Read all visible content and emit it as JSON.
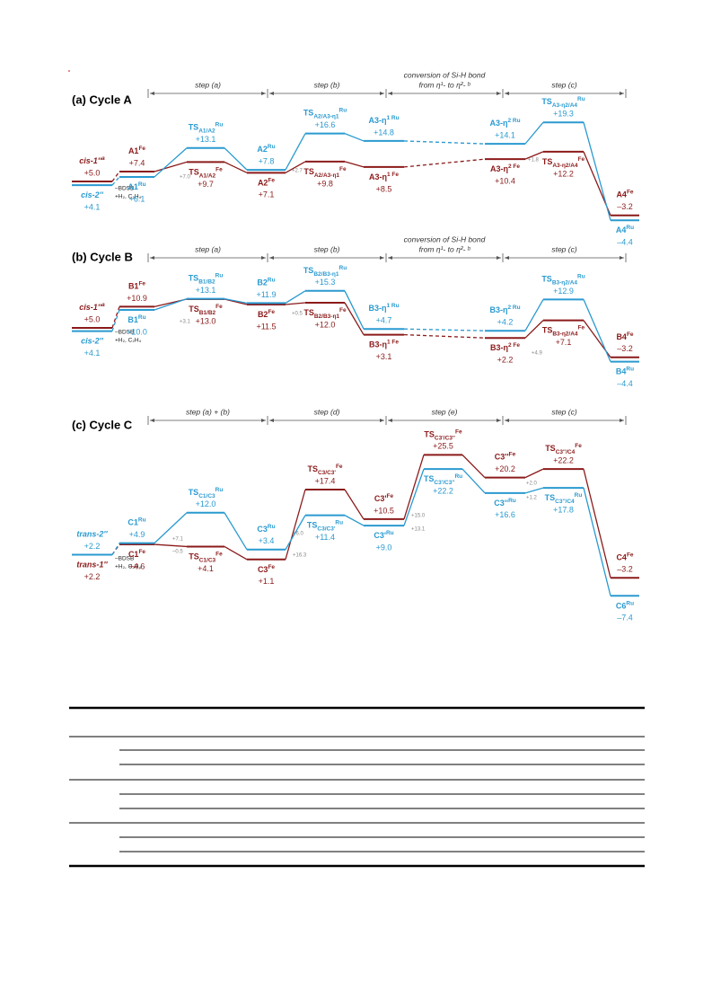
{
  "panels": [
    {
      "title": "(a) Cycle A",
      "steps": [
        [
          "step (a)"
        ],
        [
          "step (b)"
        ],
        [
          "conversion of Si-H bond",
          "from η¹- to η²- ᵇ"
        ],
        [
          "step (c)"
        ]
      ],
      "reagents": [
        "–BDSB",
        "+H₂, C₂H₄"
      ],
      "notes": [
        "+7.0",
        "+2.7",
        "+1.8"
      ],
      "levels": [
        {
          "fe": {
            "name": "cis-1''",
            "sup": "a",
            "energy": {
              "value": 5.0,
              "label": "+5.0"
            }
          },
          "ru": {
            "name": "cis-2''",
            "energy": {
              "value": 4.1,
              "label": "+4.1"
            }
          }
        },
        {
          "fe": {
            "name": "A1",
            "sup": "Fe",
            "energy": {
              "value": 7.4,
              "label": "+7.4"
            }
          },
          "ru": {
            "name": "A1",
            "sup": "Ru",
            "energy": {
              "value": 6.1,
              "label": "+6.1"
            }
          }
        },
        {
          "fe": {
            "name": "TS",
            "sub": "A1/A2",
            "sup": "Fe",
            "energy": {
              "value": 9.7,
              "label": "+9.7"
            }
          },
          "ru": {
            "name": "TS",
            "sub": "A1/A2",
            "sup": "Ru",
            "energy": {
              "value": 13.1,
              "label": "+13.1"
            }
          }
        },
        {
          "fe": {
            "name": "A2",
            "sup": "Fe",
            "energy": {
              "value": 7.1,
              "label": "+7.1"
            }
          },
          "ru": {
            "name": "A2",
            "sup": "Ru",
            "energy": {
              "value": 7.8,
              "label": "+7.8"
            }
          }
        },
        {
          "fe": {
            "name": "TS",
            "sub": "A2/A3-η1",
            "sup": "Fe",
            "energy": {
              "value": 9.8,
              "label": "+9.8"
            }
          },
          "ru": {
            "name": "TS",
            "sub": "A2/A3-η1",
            "sup": "Ru",
            "energy": {
              "value": 16.6,
              "label": "+16.6"
            }
          }
        },
        {
          "fe": {
            "name": "A3-η",
            "sup": "1 Fe",
            "energy": {
              "value": 8.5,
              "label": "+8.5"
            }
          },
          "ru": {
            "name": "A3-η",
            "sup": "1 Ru",
            "energy": {
              "value": 14.8,
              "label": "+14.8"
            }
          }
        },
        {
          "fe": {
            "name": "A3-η",
            "sup": "2 Fe",
            "energy": {
              "value": 10.4,
              "label": "+10.4"
            }
          },
          "ru": {
            "name": "A3-η",
            "sup": "2 Ru",
            "energy": {
              "value": 14.1,
              "label": "+14.1"
            }
          }
        },
        {
          "fe": {
            "name": "TS",
            "sub": "A3-η2/A4",
            "sup": "Fe",
            "energy": {
              "value": 12.2,
              "label": "+12.2"
            }
          },
          "ru": {
            "name": "TS",
            "sub": "A3-η2/A4",
            "sup": "Ru",
            "energy": {
              "value": 19.3,
              "label": "+19.3"
            }
          }
        },
        {
          "fe": {
            "name": "A4",
            "sup": "Fe",
            "energy": {
              "value": -3.2,
              "label": "–3.2"
            }
          },
          "ru": {
            "name": "A4",
            "sup": "Ru",
            "energy": {
              "value": -4.4,
              "label": "–4.4"
            }
          }
        }
      ]
    },
    {
      "title": "(b) Cycle B",
      "steps": [
        [
          "step (a)"
        ],
        [
          "step (b)"
        ],
        [
          "conversion of Si-H bond",
          "from η¹- to η²- ᵇ"
        ],
        [
          "step (c)"
        ]
      ],
      "reagents": [
        "–BDSB",
        "+H₂, C₂H₄"
      ],
      "notes": [
        "+3.1",
        "+0.5",
        "+4.9"
      ],
      "levels": [
        {
          "fe": {
            "name": "cis-1''",
            "sup": "a",
            "energy": {
              "value": 5.0,
              "label": "+5.0"
            }
          },
          "ru": {
            "name": "cis-2''",
            "energy": {
              "value": 4.1,
              "label": "+4.1"
            }
          }
        },
        {
          "fe": {
            "name": "B1",
            "sup": "Fe",
            "energy": {
              "value": 10.9,
              "label": "+10.9"
            }
          },
          "ru": {
            "name": "B1",
            "sup": "Ru",
            "energy": {
              "value": 10.0,
              "label": "+10.0"
            }
          }
        },
        {
          "fe": {
            "name": "TS",
            "sub": "B1/B2",
            "sup": "Fe",
            "energy": {
              "value": 13.0,
              "label": "+13.0"
            }
          },
          "ru": {
            "name": "TS",
            "sub": "B1/B2",
            "sup": "Ru",
            "energy": {
              "value": 13.1,
              "label": "+13.1"
            }
          }
        },
        {
          "fe": {
            "name": "B2",
            "sup": "Fe",
            "energy": {
              "value": 11.5,
              "label": "+11.5"
            }
          },
          "ru": {
            "name": "B2",
            "sup": "Ru",
            "energy": {
              "value": 11.9,
              "label": "+11.9"
            }
          }
        },
        {
          "fe": {
            "name": "TS",
            "sub": "B2/B3-η1",
            "sup": "Fe",
            "energy": {
              "value": 12.0,
              "label": "+12.0"
            }
          },
          "ru": {
            "name": "TS",
            "sub": "B2/B3-η1",
            "sup": "Ru",
            "energy": {
              "value": 15.3,
              "label": "+15.3"
            }
          }
        },
        {
          "fe": {
            "name": "B3-η",
            "sup": "1 Fe",
            "energy": {
              "value": 3.1,
              "label": "+3.1"
            }
          },
          "ru": {
            "name": "B3-η",
            "sup": "1 Ru",
            "energy": {
              "value": 4.7,
              "label": "+4.7"
            }
          }
        },
        {
          "fe": {
            "name": "B3-η",
            "sup": "2 Fe",
            "energy": {
              "value": 2.2,
              "label": "+2.2"
            }
          },
          "ru": {
            "name": "B3-η",
            "sup": "2 Ru",
            "energy": {
              "value": 4.2,
              "label": "+4.2"
            }
          }
        },
        {
          "fe": {
            "name": "TS",
            "sub": "B3-η2/A4",
            "sup": "Fe",
            "energy": {
              "value": 7.1,
              "label": "+7.1"
            }
          },
          "ru": {
            "name": "TS",
            "sub": "B3-η2/A4",
            "sup": "Ru",
            "energy": {
              "value": 12.9,
              "label": "+12.9"
            }
          }
        },
        {
          "fe": {
            "name": "B4",
            "sup": "Fe",
            "energy": {
              "value": -3.2,
              "label": "–3.2"
            }
          },
          "ru": {
            "name": "B4",
            "sup": "Ru",
            "energy": {
              "value": -4.4,
              "label": "–4.4"
            }
          }
        }
      ]
    },
    {
      "title": "(c) Cycle C",
      "steps": [
        [
          "step (a) + (b)"
        ],
        [
          "step (d)"
        ],
        [
          "step (e)"
        ],
        [
          "step (c)"
        ]
      ],
      "reagents": [
        "–BDSB",
        "+H₂, C₂H₄"
      ],
      "notes": [
        "+7.1",
        "–0.5",
        "+6.0",
        "+16.3",
        "+15.0",
        "+13.1",
        "+2.0",
        "+1.2"
      ],
      "levels": [
        {
          "fe": {
            "name": "trans-1''",
            "energy": {
              "value": 2.2,
              "label": "+2.2"
            }
          },
          "ru": {
            "name": "trans-2''",
            "energy": {
              "value": 2.2,
              "label": "+2.2"
            }
          }
        },
        {
          "fe": {
            "name": "C1",
            "sup": "Fe",
            "energy": {
              "value": 4.6,
              "label": "+4.6"
            }
          },
          "ru": {
            "name": "C1",
            "sup": "Ru",
            "energy": {
              "value": 4.9,
              "label": "+4.9"
            }
          }
        },
        {
          "fe": {
            "name": "TS",
            "sub": "C1/C3",
            "sup": "Fe",
            "energy": {
              "value": 4.1,
              "label": "+4.1"
            }
          },
          "ru": {
            "name": "TS",
            "sub": "C1/C3",
            "sup": "Ru",
            "energy": {
              "value": 12.0,
              "label": "+12.0"
            }
          }
        },
        {
          "fe": {
            "name": "C3",
            "sup": "Fe",
            "energy": {
              "value": 1.1,
              "label": "+1.1"
            }
          },
          "ru": {
            "name": "C3",
            "sup": "Ru",
            "energy": {
              "value": 3.4,
              "label": "+3.4"
            }
          }
        },
        {
          "fe": {
            "name": "TS",
            "sub": "C3/C3'",
            "sup": "Fe",
            "energy": {
              "value": 17.4,
              "label": "+17.4"
            }
          },
          "ru": {
            "name": "TS",
            "sub": "C3/C3'",
            "sup": "Ru",
            "energy": {
              "value": 11.4,
              "label": "+11.4"
            }
          }
        },
        {
          "fe": {
            "name": "C3'",
            "sup": "Fe",
            "energy": {
              "value": 10.5,
              "label": "+10.5"
            }
          },
          "ru": {
            "name": "C3'",
            "sup": "Ru",
            "energy": {
              "value": 9.0,
              "label": "+9.0"
            }
          }
        },
        {
          "fe": {
            "name": "TS",
            "sub": "C3'/C3''",
            "sup": "Fe",
            "energy": {
              "value": 25.5,
              "label": "+25.5"
            }
          },
          "ru": {
            "name": "TS",
            "sub": "C3'/C3''",
            "sup": "Ru",
            "energy": {
              "value": 22.2,
              "label": "+22.2"
            }
          }
        },
        {
          "fe": {
            "name": "C3''",
            "sup": "Fe",
            "energy": {
              "value": 20.2,
              "label": "+20.2"
            }
          },
          "ru": {
            "name": "C3''",
            "sup": "Ru",
            "energy": {
              "value": 16.6,
              "label": "+16.6"
            }
          }
        },
        {
          "fe": {
            "name": "TS",
            "sub": "C3''/C4",
            "sup": "Fe",
            "energy": {
              "value": 22.2,
              "label": "+22.2"
            }
          },
          "ru": {
            "name": "TS",
            "sub": "C3''/C4",
            "sup": "Ru",
            "energy": {
              "value": 17.8,
              "label": "+17.8"
            }
          }
        },
        {
          "fe": {
            "name": "C4",
            "sup": "Fe",
            "energy": {
              "value": -3.2,
              "label": "–3.2"
            }
          },
          "ru": {
            "name": "C6",
            "sup": "Ru",
            "energy": {
              "value": -7.4,
              "label": "–7.4"
            }
          }
        }
      ]
    }
  ]
}
